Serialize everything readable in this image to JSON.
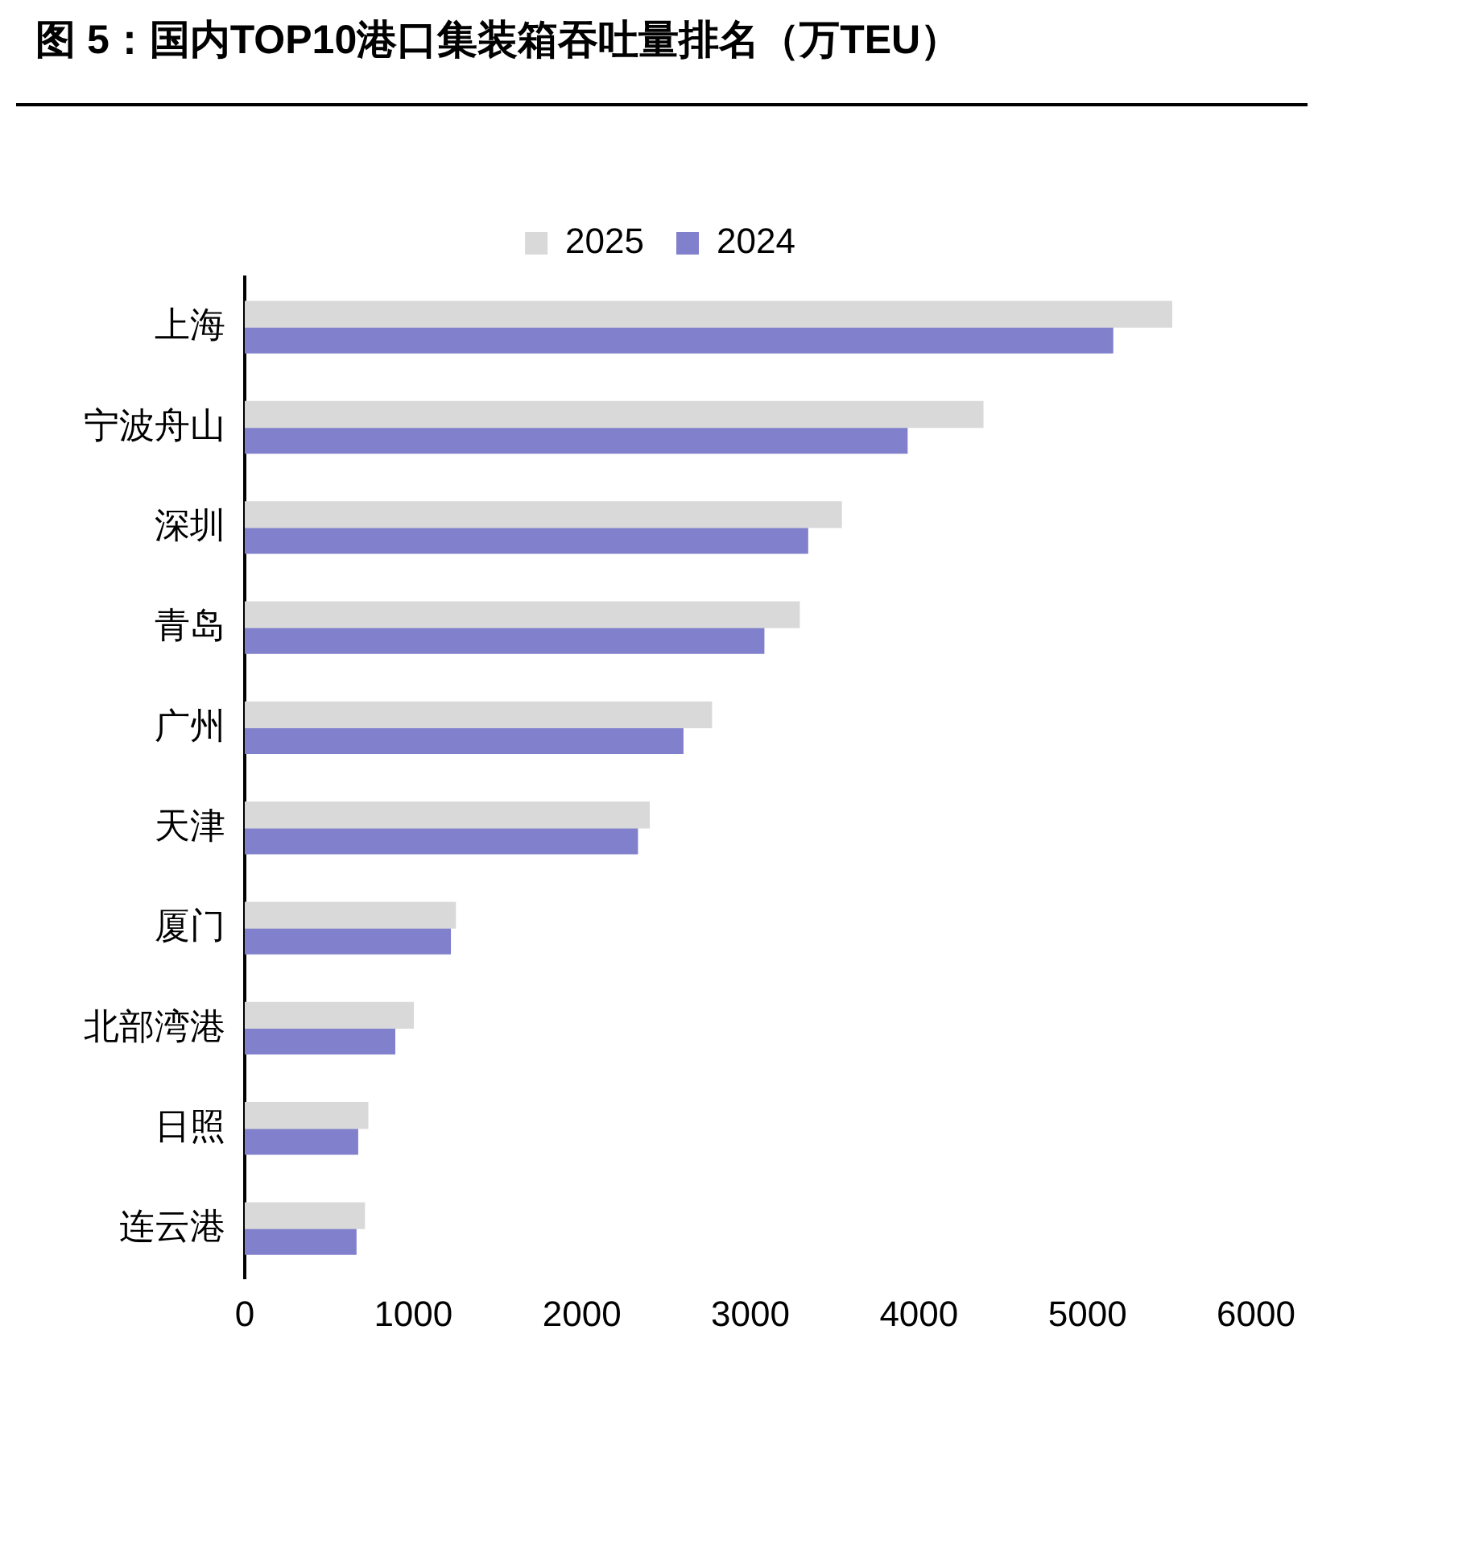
{
  "chart_data": {
    "type": "bar",
    "orientation": "horizontal",
    "title": "图 5：国内TOP10港口集装箱吞吐量排名（万TEU）",
    "categories": [
      "上海",
      "宁波舟山",
      "深圳",
      "青岛",
      "广州",
      "天津",
      "厦门",
      "北部湾港",
      "日照",
      "连云港"
    ],
    "series": [
      {
        "name": "2025",
        "color": "#d9d9d9",
        "values": [
          5500,
          4380,
          3540,
          3290,
          2770,
          2400,
          1250,
          1000,
          730,
          710
        ]
      },
      {
        "name": "2024",
        "color": "#8080cc",
        "values": [
          5150,
          3930,
          3340,
          3080,
          2600,
          2330,
          1220,
          890,
          670,
          660
        ]
      }
    ],
    "xlim": [
      0,
      6000
    ],
    "xticks": [
      0,
      1000,
      2000,
      3000,
      4000,
      5000,
      6000
    ],
    "grid": false,
    "legend": "top"
  }
}
